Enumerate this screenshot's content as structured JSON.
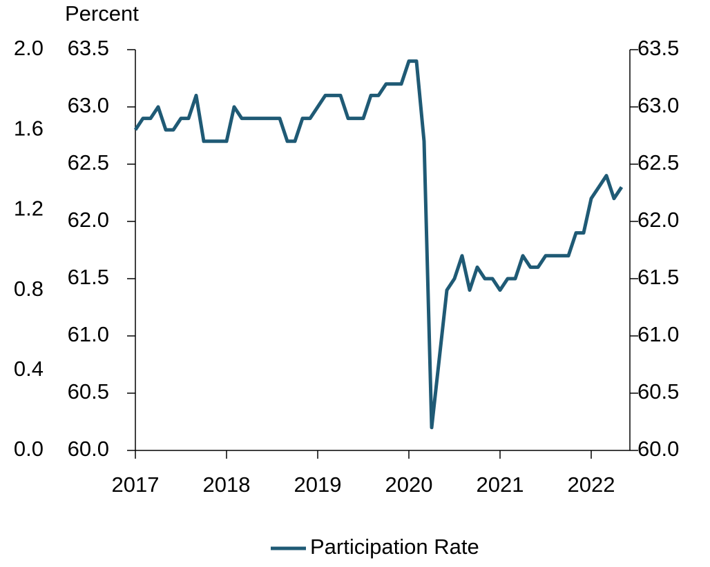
{
  "chart_data": {
    "type": "line",
    "y_axis_label": "Percent",
    "categories": [
      "2017",
      null,
      null,
      null,
      null,
      null,
      null,
      null,
      null,
      null,
      null,
      null,
      "2018",
      null,
      null,
      null,
      null,
      null,
      null,
      null,
      null,
      null,
      null,
      null,
      "2019",
      null,
      null,
      null,
      null,
      null,
      null,
      null,
      null,
      null,
      null,
      null,
      "2020",
      null,
      null,
      null,
      null,
      null,
      null,
      null,
      null,
      null,
      null,
      null,
      "2021",
      null,
      null,
      null,
      null,
      null,
      null,
      null,
      null,
      null,
      null,
      null,
      "2022",
      null,
      null,
      null,
      null
    ],
    "series": [
      {
        "name": "Participation Rate",
        "color": "#1f5a75",
        "values": [
          62.8,
          62.9,
          62.9,
          63.0,
          62.8,
          62.8,
          62.9,
          62.9,
          63.1,
          62.7,
          62.7,
          62.7,
          62.7,
          63.0,
          62.9,
          62.9,
          62.9,
          62.9,
          62.9,
          62.9,
          62.7,
          62.7,
          62.9,
          62.9,
          63.0,
          63.1,
          63.1,
          63.1,
          62.9,
          62.9,
          62.9,
          63.1,
          63.1,
          63.2,
          63.2,
          63.2,
          63.4,
          63.4,
          62.7,
          60.2,
          60.8,
          61.4,
          61.5,
          61.7,
          61.4,
          61.6,
          61.5,
          61.5,
          61.4,
          61.5,
          61.5,
          61.7,
          61.6,
          61.6,
          61.7,
          61.7,
          61.7,
          61.7,
          61.9,
          61.9,
          62.2,
          62.3,
          62.4,
          62.2,
          62.3
        ]
      }
    ],
    "ylim": [
      60.0,
      63.5
    ],
    "yticks": [
      {
        "value": 60.0,
        "label": "60.0"
      },
      60.5,
      {
        "value": 61.0,
        "label": "61.0"
      },
      61.5,
      {
        "value": 62.0,
        "label": "62.0"
      },
      62.5,
      {
        "value": 63.0,
        "label": "63.0"
      },
      63.5
    ],
    "y2lim": [
      0.0,
      2.0
    ],
    "y2ticks": [
      {
        "value": 0.0,
        "label": "0.0"
      },
      0.4,
      0.8,
      1.2,
      1.6,
      {
        "value": 2.0,
        "label": "2.0"
      }
    ],
    "grid": false,
    "legend": "bottom"
  }
}
